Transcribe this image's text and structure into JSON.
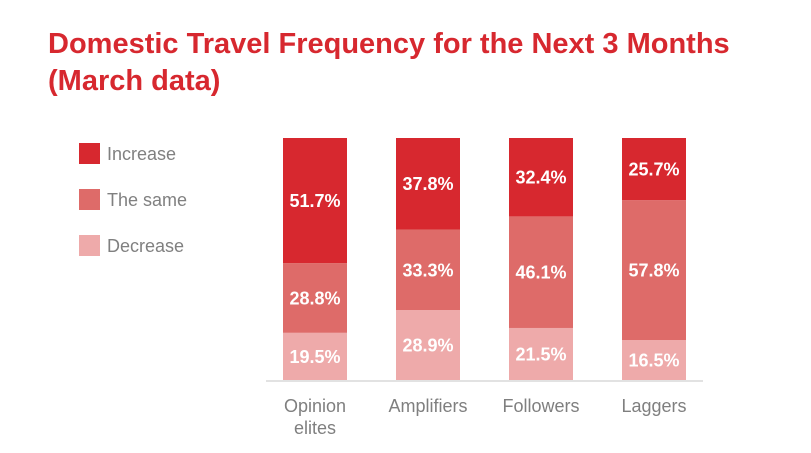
{
  "chart_data": {
    "type": "bar",
    "stacked": true,
    "title_lines": [
      "Domestic Travel Frequency for the Next 3 Months",
      "(March data)"
    ],
    "categories": [
      [
        "Opinion",
        "elites"
      ],
      [
        "Amplifiers"
      ],
      [
        "Followers"
      ],
      [
        "Laggers"
      ]
    ],
    "series": [
      {
        "name": "Increase",
        "color": "#d7282f",
        "values": [
          51.7,
          37.8,
          32.4,
          25.7
        ],
        "labels": [
          "51.7%",
          "37.8%",
          "32.4%",
          "25.7%"
        ]
      },
      {
        "name": "The same",
        "color": "#de6b69",
        "values": [
          28.8,
          33.3,
          46.1,
          57.8
        ],
        "labels": [
          "28.8%",
          "33.3%",
          "46.1%",
          "57.8%"
        ]
      },
      {
        "name": "Decrease",
        "color": "#eeaaaa",
        "values": [
          19.5,
          28.9,
          21.5,
          16.5
        ],
        "labels": [
          "19.5%",
          "28.9%",
          "21.5%",
          "16.5%"
        ]
      }
    ],
    "stack_order_bottom_to_top": [
      "Decrease",
      "The same",
      "Increase"
    ],
    "ylim": [
      0,
      100
    ],
    "legend_position": "left",
    "grid": false
  },
  "colors": {
    "title": "#d7282f",
    "label_text": "#808080",
    "baseline": "#d9d9d9"
  }
}
